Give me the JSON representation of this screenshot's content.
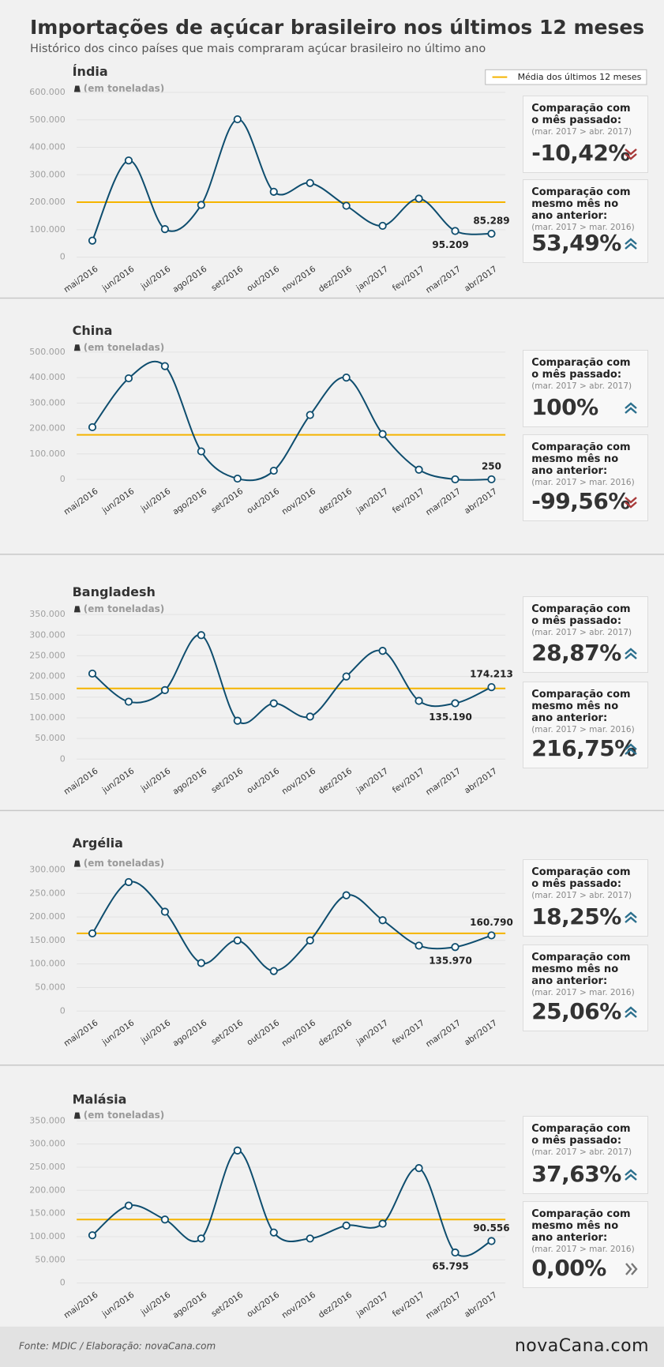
{
  "header": {
    "title": "Importações de açúcar brasileiro nos últimos 12 meses",
    "subtitle": "Histórico dos cinco países que mais compraram açúcar brasileiro no último ano"
  },
  "legend": {
    "label": "Média dos últimos 12 meses",
    "color": "#f5b400"
  },
  "chart_data": [
    {
      "type": "line",
      "title": "Índia",
      "unit": "(em toneladas)",
      "color": "#0e4d6e",
      "categories": [
        "mai/2016",
        "jun/2016",
        "jul/2016",
        "ago/2016",
        "set/2016",
        "out/2016",
        "nov/2016",
        "dez/2016",
        "jan/2017",
        "fev/2017",
        "mar/2017",
        "abr/2017"
      ],
      "values": [
        60000,
        352000,
        102000,
        190000,
        502000,
        238000,
        270000,
        187000,
        114000,
        213000,
        95209,
        85289
      ],
      "value_labels": [
        null,
        null,
        null,
        null,
        null,
        null,
        null,
        null,
        null,
        null,
        "95.209",
        "85.289"
      ],
      "average": 200000,
      "ylim": [
        0,
        600000
      ],
      "yticks": [
        0,
        {
          "value": 100000,
          "label": "100.000"
        },
        {
          "value": 200000,
          "label": "200.000"
        },
        {
          "value": 300000,
          "label": "300.000"
        },
        {
          "value": 400000,
          "label": "400.000"
        },
        {
          "value": 500000,
          "label": "500.000"
        },
        {
          "value": 600000,
          "label": "600.000"
        }
      ],
      "grid": true,
      "comparisons": [
        {
          "label": "Comparação com o mês passado:",
          "period": "(mar. 2017 > abr. 2017)",
          "value": "-10,42%",
          "trend": "down"
        },
        {
          "label": "Comparação com mesmo mês no ano anterior:",
          "period": "(mar. 2017 > mar. 2016)",
          "value": "53,49%",
          "trend": "up"
        }
      ]
    },
    {
      "type": "line",
      "title": "China",
      "unit": "(em toneladas)",
      "color": "#0e4d6e",
      "categories": [
        "mai/2016",
        "jun/2016",
        "jul/2016",
        "ago/2016",
        "set/2016",
        "out/2016",
        "nov/2016",
        "dez/2016",
        "jan/2017",
        "fev/2017",
        "mar/2017",
        "abr/2017"
      ],
      "values": [
        205000,
        397000,
        445000,
        110000,
        3000,
        34000,
        253000,
        400000,
        178000,
        38000,
        125,
        250
      ],
      "value_labels": [
        null,
        null,
        null,
        null,
        null,
        null,
        null,
        null,
        null,
        null,
        null,
        "250"
      ],
      "average": 175000,
      "ylim": [
        0,
        500000
      ],
      "yticks": [
        0,
        {
          "value": 100000,
          "label": "100.000"
        },
        {
          "value": 200000,
          "label": "200.000"
        },
        {
          "value": 300000,
          "label": "300.000"
        },
        {
          "value": 400000,
          "label": "400.000"
        },
        {
          "value": 500000,
          "label": "500.000"
        }
      ],
      "grid": true,
      "comparisons": [
        {
          "label": "Comparação com o mês passado:",
          "period": "(mar. 2017 > abr. 2017)",
          "value": "100%",
          "trend": "up"
        },
        {
          "label": "Comparação com mesmo mês no ano anterior:",
          "period": "(mar. 2017 > mar. 2016)",
          "value": "-99,56%",
          "trend": "down"
        }
      ]
    },
    {
      "type": "line",
      "title": "Bangladesh",
      "unit": "(em toneladas)",
      "color": "#0e4d6e",
      "categories": [
        "mai/2016",
        "jun/2016",
        "jul/2016",
        "ago/2016",
        "set/2016",
        "out/2016",
        "nov/2016",
        "dez/2016",
        "jan/2017",
        "fev/2017",
        "mar/2017",
        "abr/2017"
      ],
      "values": [
        207000,
        139000,
        167000,
        300000,
        93000,
        135000,
        103000,
        200000,
        262000,
        141000,
        135190,
        174213
      ],
      "value_labels": [
        null,
        null,
        null,
        null,
        null,
        null,
        null,
        null,
        null,
        null,
        "135.190",
        "174.213"
      ],
      "average": 171000,
      "ylim": [
        0,
        350000
      ],
      "yticks": [
        0,
        {
          "value": 50000,
          "label": "50.000"
        },
        {
          "value": 100000,
          "label": "100.000"
        },
        {
          "value": 150000,
          "label": "150.000"
        },
        {
          "value": 200000,
          "label": "200.000"
        },
        {
          "value": 250000,
          "label": "250.000"
        },
        {
          "value": 300000,
          "label": "300.000"
        },
        {
          "value": 350000,
          "label": "350.000"
        }
      ],
      "grid": true,
      "comparisons": [
        {
          "label": "Comparação com o mês passado:",
          "period": "(mar. 2017 > abr. 2017)",
          "value": "28,87%",
          "trend": "up"
        },
        {
          "label": "Comparação com mesmo mês no ano anterior:",
          "period": "(mar. 2017 > mar. 2016)",
          "value": "216,75%",
          "trend": "up"
        }
      ]
    },
    {
      "type": "line",
      "title": "Argélia",
      "unit": "(em toneladas)",
      "color": "#0e4d6e",
      "categories": [
        "mai/2016",
        "jun/2016",
        "jul/2016",
        "ago/2016",
        "set/2016",
        "out/2016",
        "nov/2016",
        "dez/2016",
        "jan/2017",
        "fev/2017",
        "mar/2017",
        "abr/2017"
      ],
      "values": [
        165000,
        274000,
        211000,
        102000,
        150000,
        85000,
        150000,
        246000,
        193000,
        139000,
        135970,
        160790
      ],
      "value_labels": [
        null,
        null,
        null,
        null,
        null,
        null,
        null,
        null,
        null,
        null,
        "135.970",
        "160.790"
      ],
      "average": 165000,
      "ylim": [
        0,
        300000
      ],
      "yticks": [
        0,
        {
          "value": 50000,
          "label": "50.000"
        },
        {
          "value": 100000,
          "label": "100.000"
        },
        {
          "value": 150000,
          "label": "150.000"
        },
        {
          "value": 200000,
          "label": "200.000"
        },
        {
          "value": 250000,
          "label": "250.000"
        },
        {
          "value": 300000,
          "label": "300.000"
        }
      ],
      "grid": true,
      "comparisons": [
        {
          "label": "Comparação com o mês passado:",
          "period": "(mar. 2017 > abr. 2017)",
          "value": "18,25%",
          "trend": "up"
        },
        {
          "label": "Comparação com mesmo mês no ano anterior:",
          "period": "(mar. 2017 > mar. 2016)",
          "value": "25,06%",
          "trend": "up"
        }
      ]
    },
    {
      "type": "line",
      "title": "Malásia",
      "unit": "(em toneladas)",
      "color": "#0e4d6e",
      "categories": [
        "mai/2016",
        "jun/2016",
        "jul/2016",
        "ago/2016",
        "set/2016",
        "out/2016",
        "nov/2016",
        "dez/2016",
        "jan/2017",
        "fev/2017",
        "mar/2017",
        "abr/2017"
      ],
      "values": [
        103000,
        167000,
        137000,
        96000,
        286000,
        109000,
        96000,
        124000,
        128000,
        248000,
        65795,
        90556
      ],
      "value_labels": [
        null,
        null,
        null,
        null,
        null,
        null,
        null,
        null,
        null,
        null,
        "65.795",
        "90.556"
      ],
      "average": 137000,
      "ylim": [
        0,
        350000
      ],
      "yticks": [
        0,
        {
          "value": 50000,
          "label": "50.000"
        },
        {
          "value": 100000,
          "label": "100.000"
        },
        {
          "value": 150000,
          "label": "150.000"
        },
        {
          "value": 200000,
          "label": "200.000"
        },
        {
          "value": 250000,
          "label": "250.000"
        },
        {
          "value": 300000,
          "label": "300.000"
        },
        {
          "value": 350000,
          "label": "350.000"
        }
      ],
      "grid": true,
      "comparisons": [
        {
          "label": "Comparação com o mês passado:",
          "period": "(mar. 2017 > abr. 2017)",
          "value": "37,63%",
          "trend": "up"
        },
        {
          "label": "Comparação com mesmo mês no ano anterior:",
          "period": "(mar. 2017 > mar. 2016)",
          "value": "0,00%",
          "trend": "flat"
        }
      ]
    }
  ],
  "footer": {
    "source": "Fonte: MDIC / Elaboração: novaCana.com",
    "logo": "novaCana.com"
  }
}
